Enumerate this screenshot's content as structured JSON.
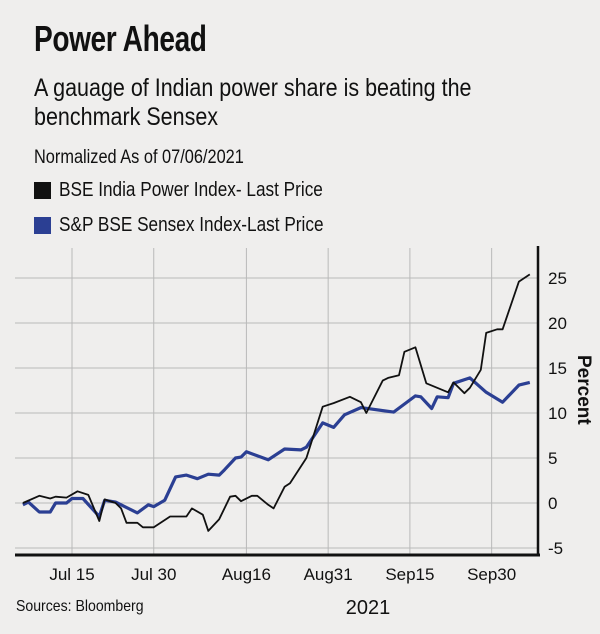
{
  "chart_data": {
    "type": "line",
    "title": "Power Ahead",
    "subtitle": [
      "A gauage of Indian power share is beating the",
      "benchmark Sensex"
    ],
    "note": "Normalized As of 07/06/2021",
    "source": "Sources: Bloomberg",
    "xlabel": "2021",
    "ylabel": "Percent",
    "xlim": [
      "2021-07-05",
      "2021-10-09"
    ],
    "ylim": [
      -5,
      27
    ],
    "yticks": [
      -5,
      0,
      5,
      10,
      15,
      20,
      25
    ],
    "xticks": [
      {
        "date": "2021-07-15",
        "label": "Jul 15"
      },
      {
        "date": "2021-07-30",
        "label": "Jul 30"
      },
      {
        "date": "2021-08-16",
        "label": "Aug16"
      },
      {
        "date": "2021-08-31",
        "label": "Aug31"
      },
      {
        "date": "2021-09-15",
        "label": "Sep15"
      },
      {
        "date": "2021-09-30",
        "label": "Sep30"
      }
    ],
    "grid": true,
    "yaxis_side": "right",
    "legend_placement": "top-left",
    "series": [
      {
        "name": "BSE India Power Index- Last Price",
        "color": "#111111",
        "points": [
          [
            "2021-07-06",
            0
          ],
          [
            "2021-07-09",
            0.8
          ],
          [
            "2021-07-11",
            0.5
          ],
          [
            "2021-07-12",
            0.7
          ],
          [
            "2021-07-14",
            0.6
          ],
          [
            "2021-07-16",
            1.3
          ],
          [
            "2021-07-18",
            0.9
          ],
          [
            "2021-07-20",
            -2.0
          ],
          [
            "2021-07-21",
            0.4
          ],
          [
            "2021-07-23",
            0
          ],
          [
            "2021-07-24",
            -0.6
          ],
          [
            "2021-07-25",
            -2.2
          ],
          [
            "2021-07-27",
            -2.2
          ],
          [
            "2021-07-28",
            -2.7
          ],
          [
            "2021-07-30",
            -2.7
          ],
          [
            "2021-08-02",
            -1.5
          ],
          [
            "2021-08-05",
            -1.5
          ],
          [
            "2021-08-06",
            -0.6
          ],
          [
            "2021-08-08",
            -1.3
          ],
          [
            "2021-08-09",
            -3.1
          ],
          [
            "2021-08-11",
            -1.8
          ],
          [
            "2021-08-13",
            0.7
          ],
          [
            "2021-08-14",
            0.8
          ],
          [
            "2021-08-15",
            0.2
          ],
          [
            "2021-08-17",
            0.8
          ],
          [
            "2021-08-18",
            0.8
          ],
          [
            "2021-08-20",
            -0.2
          ],
          [
            "2021-08-21",
            -0.6
          ],
          [
            "2021-08-23",
            1.8
          ],
          [
            "2021-08-24",
            2.2
          ],
          [
            "2021-08-27",
            5.0
          ],
          [
            "2021-08-30",
            10.7
          ],
          [
            "2021-09-01",
            11.1
          ],
          [
            "2021-09-04",
            11.8
          ],
          [
            "2021-09-06",
            11.2
          ],
          [
            "2021-09-07",
            10.0
          ],
          [
            "2021-09-10",
            13.6
          ],
          [
            "2021-09-11",
            13.9
          ],
          [
            "2021-09-13",
            14.2
          ],
          [
            "2021-09-14",
            16.8
          ],
          [
            "2021-09-16",
            17.3
          ],
          [
            "2021-09-18",
            13.3
          ],
          [
            "2021-09-20",
            12.8
          ],
          [
            "2021-09-22",
            12.3
          ],
          [
            "2021-09-23",
            13.4
          ],
          [
            "2021-09-25",
            12.2
          ],
          [
            "2021-09-26",
            12.8
          ],
          [
            "2021-09-28",
            14.8
          ],
          [
            "2021-09-29",
            18.9
          ],
          [
            "2021-10-01",
            19.3
          ],
          [
            "2021-10-02",
            19.3
          ],
          [
            "2021-10-05",
            24.6
          ],
          [
            "2021-10-07",
            25.4
          ]
        ]
      },
      {
        "name": "S&P BSE Sensex Index-Last Price",
        "color": "#2b3f93",
        "points": [
          [
            "2021-07-06",
            -0.2
          ],
          [
            "2021-07-07",
            0.1
          ],
          [
            "2021-07-09",
            -1.0
          ],
          [
            "2021-07-11",
            -1.0
          ],
          [
            "2021-07-12",
            0
          ],
          [
            "2021-07-14",
            0
          ],
          [
            "2021-07-15",
            0.5
          ],
          [
            "2021-07-17",
            0.5
          ],
          [
            "2021-07-20",
            -1.5
          ],
          [
            "2021-07-21",
            0.3
          ],
          [
            "2021-07-23",
            0.1
          ],
          [
            "2021-07-27",
            -1.1
          ],
          [
            "2021-07-29",
            -0.2
          ],
          [
            "2021-07-30",
            -0.4
          ],
          [
            "2021-08-01",
            0.3
          ],
          [
            "2021-08-03",
            2.9
          ],
          [
            "2021-08-05",
            3.1
          ],
          [
            "2021-08-07",
            2.7
          ],
          [
            "2021-08-09",
            3.2
          ],
          [
            "2021-08-11",
            3.1
          ],
          [
            "2021-08-12",
            3.7
          ],
          [
            "2021-08-14",
            5.0
          ],
          [
            "2021-08-15",
            5.1
          ],
          [
            "2021-08-16",
            5.7
          ],
          [
            "2021-08-20",
            4.8
          ],
          [
            "2021-08-23",
            6.0
          ],
          [
            "2021-08-26",
            5.9
          ],
          [
            "2021-08-27",
            6.2
          ],
          [
            "2021-08-30",
            8.9
          ],
          [
            "2021-09-01",
            8.4
          ],
          [
            "2021-09-03",
            9.8
          ],
          [
            "2021-09-06",
            10.6
          ],
          [
            "2021-09-12",
            10.1
          ],
          [
            "2021-09-16",
            11.9
          ],
          [
            "2021-09-17",
            11.8
          ],
          [
            "2021-09-19",
            10.5
          ],
          [
            "2021-09-20",
            11.8
          ],
          [
            "2021-09-22",
            11.7
          ],
          [
            "2021-09-23",
            13.3
          ],
          [
            "2021-09-26",
            13.9
          ],
          [
            "2021-09-29",
            12.3
          ],
          [
            "2021-10-02",
            11.2
          ],
          [
            "2021-10-05",
            13.1
          ],
          [
            "2021-10-07",
            13.4
          ]
        ]
      }
    ]
  }
}
